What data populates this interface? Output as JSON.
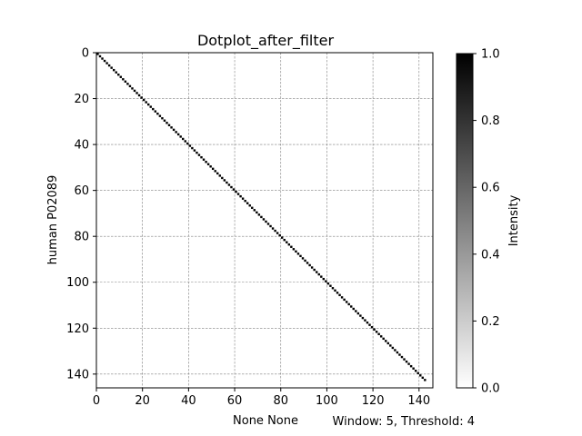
{
  "chart_data": {
    "type": "heatmap",
    "subtype": "dotplot",
    "title": "Dotplot_after_filter",
    "xlabel": "None None",
    "ylabel": "human P02089",
    "annotation": "Window: 5, Threshold: 4",
    "xlim": [
      0,
      146
    ],
    "ylim": [
      146,
      0
    ],
    "y_inverted": true,
    "x_ticks": [
      0,
      20,
      40,
      60,
      80,
      100,
      120,
      140
    ],
    "y_ticks": [
      0,
      20,
      40,
      60,
      80,
      100,
      120,
      140
    ],
    "grid": true,
    "points": {
      "description": "diagonal matches i == j",
      "start": 0,
      "end": 142,
      "intensity": 1.0
    },
    "colorbar": {
      "label": "Intensity",
      "range": [
        0.0,
        1.0
      ],
      "ticks": [
        "0.0",
        "0.2",
        "0.4",
        "0.6",
        "0.8",
        "1.0"
      ],
      "colormap": "grayscale (white to black)",
      "low_color": "#ffffff",
      "high_color": "#000000"
    }
  }
}
